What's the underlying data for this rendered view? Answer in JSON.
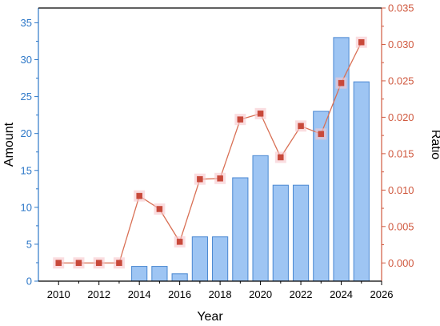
{
  "colors": {
    "left_axis": "#2e78c8",
    "right_axis": "#d05a40",
    "bar_fill": "#9ec5f3",
    "bar_stroke": "#4a88d2",
    "line": "#d97055",
    "marker": "#c8493a",
    "frame": "#000000"
  },
  "chart_data": {
    "type": "bar",
    "title": "",
    "xlabel": "Year",
    "ylabel": "Amount",
    "y2label": "Ratio",
    "xlim": [
      2009,
      2026
    ],
    "ylim": [
      0,
      37
    ],
    "y2lim": [
      -0.0025,
      0.035
    ],
    "x_ticks": [
      2010,
      2012,
      2014,
      2016,
      2018,
      2020,
      2022,
      2024,
      2026
    ],
    "y_ticks": [
      0,
      5,
      10,
      15,
      20,
      25,
      30,
      35
    ],
    "y2_ticks": [
      "0.000",
      "0.005",
      "0.010",
      "0.015",
      "0.020",
      "0.025",
      "0.030",
      "0.035"
    ],
    "grid": false,
    "series": [
      {
        "type": "bar",
        "axis": "left",
        "x": [
          2014,
          2015,
          2016,
          2017,
          2018,
          2019,
          2020,
          2021,
          2022,
          2023,
          2024,
          2025
        ],
        "values": [
          2,
          2,
          1,
          6,
          6,
          14,
          17,
          13,
          13,
          23,
          33,
          27
        ]
      },
      {
        "type": "line",
        "axis": "right",
        "marker": "square",
        "x": [
          2010,
          2011,
          2012,
          2013,
          2014,
          2015,
          2016,
          2017,
          2018,
          2019,
          2020,
          2021,
          2022,
          2023,
          2024,
          2025
        ],
        "values": [
          0.0,
          0.0,
          0.0,
          0.0,
          0.0092,
          0.0074,
          0.0029,
          0.0115,
          0.0116,
          0.0197,
          0.0205,
          0.0145,
          0.0188,
          0.0177,
          0.0247,
          0.0303
        ]
      }
    ]
  }
}
